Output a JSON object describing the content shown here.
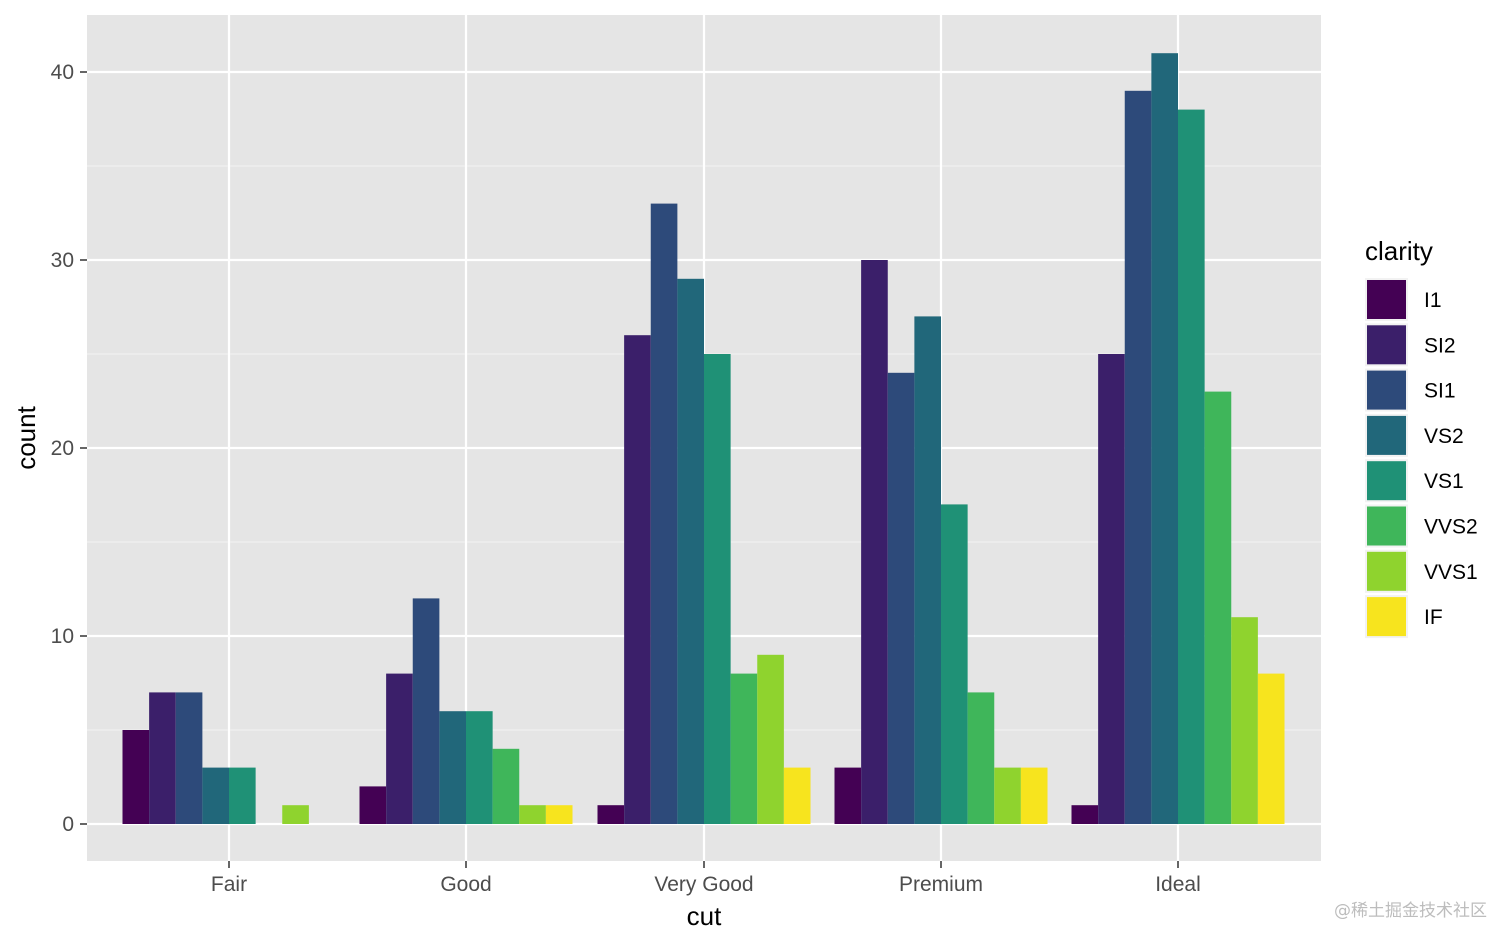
{
  "chart_data": {
    "type": "bar",
    "xlabel": "cut",
    "ylabel": "count",
    "categories": [
      "Fair",
      "Good",
      "Very Good",
      "Premium",
      "Ideal"
    ],
    "ylim": [
      -2,
      43
    ],
    "yticks": [
      0,
      10,
      20,
      30,
      40
    ],
    "grid": true,
    "legend": {
      "title": "clarity",
      "position": "right"
    },
    "series": [
      {
        "name": "I1",
        "color": "#440154",
        "values": [
          5,
          2,
          1,
          3,
          1
        ]
      },
      {
        "name": "SI2",
        "color": "#3B1F6A",
        "values": [
          7,
          8,
          26,
          30,
          25
        ]
      },
      {
        "name": "SI1",
        "color": "#2D4A7A",
        "values": [
          7,
          12,
          33,
          24,
          39
        ]
      },
      {
        "name": "VS2",
        "color": "#21677A",
        "values": [
          3,
          6,
          29,
          27,
          41
        ]
      },
      {
        "name": "VS1",
        "color": "#1F9176",
        "values": [
          3,
          6,
          25,
          17,
          38
        ]
      },
      {
        "name": "VVS2",
        "color": "#3FB65A",
        "values": [
          0,
          4,
          8,
          7,
          23
        ]
      },
      {
        "name": "VVS1",
        "color": "#8FD32E",
        "values": [
          1,
          1,
          9,
          3,
          11
        ]
      },
      {
        "name": "IF",
        "color": "#F7E41E",
        "values": [
          0,
          1,
          3,
          3,
          8
        ]
      }
    ]
  },
  "watermark": "@稀土掘金技术社区"
}
